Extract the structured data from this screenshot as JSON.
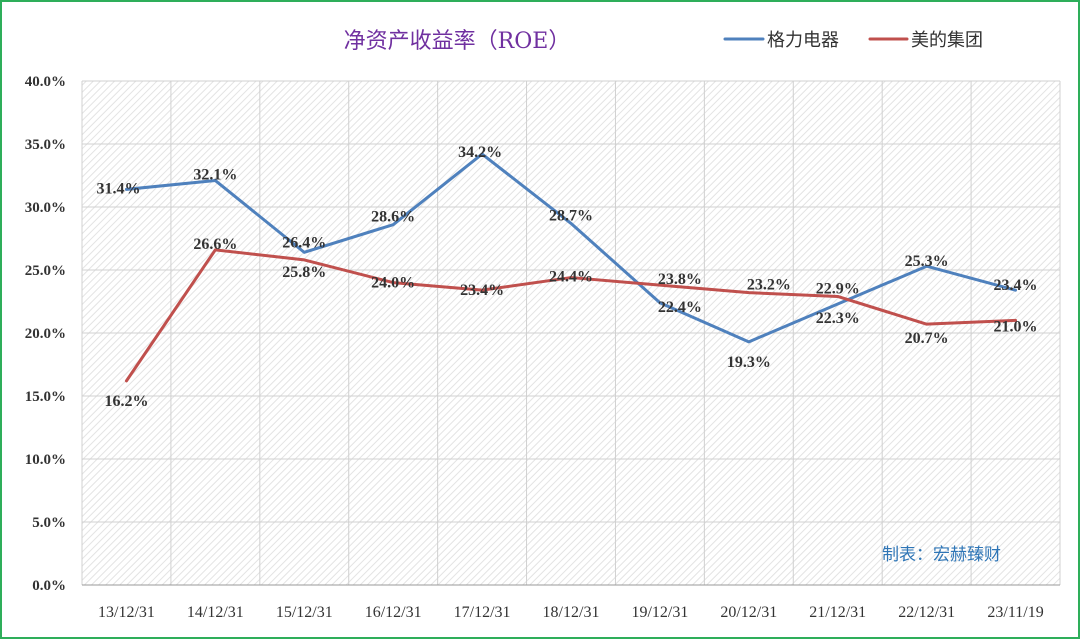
{
  "chart_data": {
    "type": "line",
    "title": "净资产收益率（ROE）",
    "categories": [
      "13/12/31",
      "14/12/31",
      "15/12/31",
      "16/12/31",
      "17/12/31",
      "18/12/31",
      "19/12/31",
      "20/12/31",
      "21/12/31",
      "22/12/31",
      "23/11/19"
    ],
    "series": [
      {
        "name": "格力电器",
        "color": "#4f81bd",
        "values": [
          31.4,
          32.1,
          26.4,
          28.6,
          34.2,
          28.7,
          22.4,
          19.3,
          22.3,
          25.3,
          23.4
        ],
        "labels": [
          "31.4%",
          "32.1%",
          "26.4%",
          "28.6%",
          "34.2%",
          "28.7%",
          "22.4%",
          "19.3%",
          "22.3%",
          "25.3%",
          "23.4%"
        ]
      },
      {
        "name": "美的集团",
        "color": "#c0504d",
        "values": [
          16.2,
          26.6,
          25.8,
          24.0,
          23.4,
          24.4,
          23.8,
          23.2,
          22.9,
          20.7,
          21.0
        ],
        "labels": [
          "16.2%",
          "26.6%",
          "25.8%",
          "24.0%",
          "23.4%",
          "24.4%",
          "23.8%",
          "23.2%",
          "22.9%",
          "20.7%",
          "21.0%"
        ]
      }
    ],
    "ylim": [
      0,
      40
    ],
    "yticks": [
      "0.0%",
      "5.0%",
      "10.0%",
      "15.0%",
      "20.0%",
      "25.0%",
      "30.0%",
      "35.0%",
      "40.0%"
    ],
    "grid": true,
    "legend_position": "top-right"
  },
  "credit": "制表：宏赫臻财"
}
